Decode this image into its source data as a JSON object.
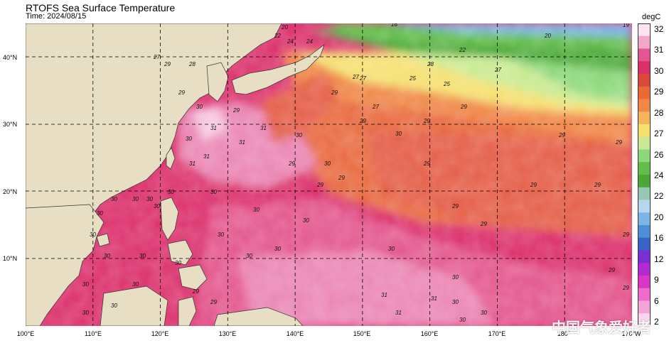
{
  "header": {
    "title": "RTOFS Sea Surface Temperature",
    "time_label": "Time: 2024/08/15"
  },
  "map": {
    "lon_ticks": [
      "100°E",
      "110°E",
      "120°E",
      "130°E",
      "140°E",
      "150°E",
      "160°E",
      "170°E",
      "180°",
      "170°W"
    ],
    "lat_ticks": [
      "40°N",
      "30°N",
      "20°N",
      "10°N"
    ],
    "colors": {
      "land": "#e8dec4",
      "sst_19": "#4a8fd8",
      "sst_20": "#7db5e8",
      "sst_22": "#96c9b4",
      "sst_23": "#62bd49",
      "sst_24": "#4aa935",
      "sst_25": "#8cd87a",
      "sst_26": "#c9ea90",
      "sst_27": "#f5e070",
      "sst_275": "#f5b25e",
      "sst_28": "#f08746",
      "sst_285": "#e8683c",
      "sst_29": "#e45b44",
      "sst_30": "#db2f6a",
      "sst_305": "#e3558c",
      "sst_31": "#ea85b4",
      "sst_32": "#f7c8e0"
    },
    "contour_labels": [
      "20",
      "22",
      "24",
      "25",
      "26",
      "27",
      "28",
      "29",
      "30",
      "31",
      "19",
      "16"
    ]
  },
  "colorbar": {
    "unit": "degC",
    "labels": [
      "32",
      "31",
      "30",
      "29",
      "28",
      "27",
      "26",
      "24",
      "22",
      "20",
      "16",
      "12",
      "9",
      "6",
      "2"
    ],
    "colors": [
      "#fbe3ef",
      "#f2a6c8",
      "#e35595",
      "#db2f6a",
      "#d9493a",
      "#ea6a36",
      "#f08746",
      "#f6b55c",
      "#f5e070",
      "#c9ea90",
      "#8cd87a",
      "#62bd49",
      "#4aa935",
      "#96c9b4",
      "#b7d7ef",
      "#7db5e8",
      "#4a8fd8",
      "#3a63c8",
      "#7b2fd0",
      "#b22ad0",
      "#d936c8",
      "#f06ccc",
      "#f5a4d8",
      "#fbd6ea"
    ]
  },
  "watermark": "中国气象爱好者"
}
